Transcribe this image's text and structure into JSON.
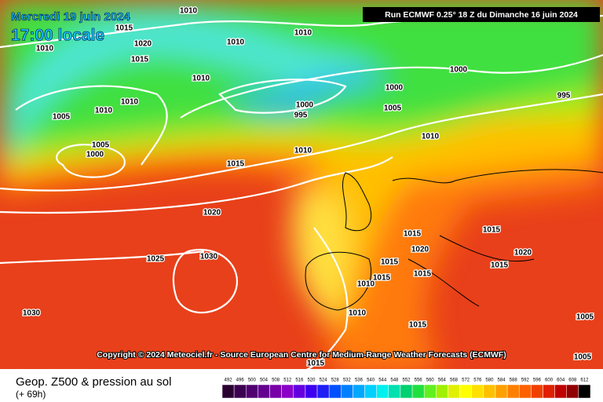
{
  "header": {
    "date": "Mercredi 19 juin 2024",
    "time": "17:00 locale",
    "run": "Run ECMWF 0.25° 18 Z du Dimanche 16 juin 2024"
  },
  "copyright": "Copyright © 2024 Meteociel.fr - Source European Centre for Medium-Range Weather Forecasts (ECMWF)",
  "footer": {
    "title": "Geop. Z500 & pression au sol",
    "lead": "(+ 69h)"
  },
  "isobar_labels": [
    "1010",
    "1015",
    "1020",
    "1015",
    "1010",
    "1010",
    "1010",
    "1010",
    "1010",
    "1010",
    "1005",
    "1005",
    "1000",
    "1000",
    "1000",
    "995",
    "1005",
    "1000",
    "995",
    "1010",
    "1010",
    "1015",
    "1020",
    "1025",
    "1030",
    "1030",
    "1015",
    "1020",
    "1015",
    "1010",
    "1015",
    "1015",
    "1015",
    "1020",
    "1015",
    "1010",
    "1015",
    "1015",
    "1005",
    "1005"
  ],
  "legend": {
    "labels": [
      492,
      496,
      500,
      504,
      508,
      512,
      516,
      520,
      524,
      528,
      532,
      536,
      540,
      544,
      548,
      552,
      556,
      560,
      564,
      568,
      572,
      576,
      580,
      584,
      588,
      592,
      596,
      600,
      604,
      608,
      612
    ],
    "colors": [
      "#2a0030",
      "#3c0050",
      "#500070",
      "#640090",
      "#7800a8",
      "#8a00c8",
      "#6400e0",
      "#3c00f0",
      "#1e1ef5",
      "#0050ff",
      "#0080ff",
      "#00a8ff",
      "#00d0ff",
      "#00f0f0",
      "#00e0b0",
      "#00d070",
      "#20e040",
      "#60f020",
      "#a0f000",
      "#e0f000",
      "#ffff00",
      "#ffe000",
      "#ffc000",
      "#ffa000",
      "#ff8000",
      "#ff6000",
      "#f04000",
      "#e02000",
      "#c00000",
      "#900000",
      "#000000"
    ]
  }
}
